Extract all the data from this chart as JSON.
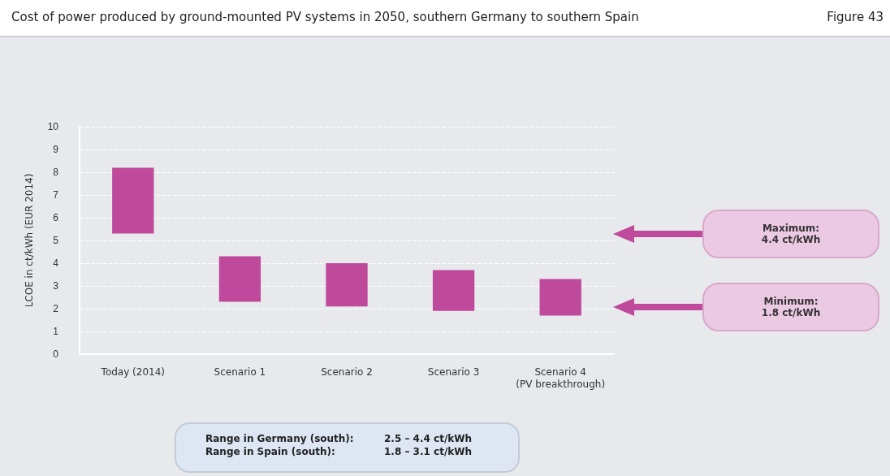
{
  "chart_data": {
    "type": "bar",
    "title": "Cost of power produced by ground-mounted PV systems in 2050, southern Germany to southern Spain",
    "ylabel": "LCOE in ct/kWh (EUR 2014)",
    "categories": [
      "Today (2014)",
      "Scenario 1",
      "Scenario 2",
      "Scenario 3",
      "Scenario 4\n(PV breakthrough)"
    ],
    "base": [
      5.3,
      2.3,
      2.1,
      1.9,
      1.7
    ],
    "values": [
      2.9,
      2.0,
      1.9,
      1.8,
      1.6
    ],
    "color": "#bf4a9b",
    "ylim": [
      0,
      10
    ],
    "yticks": [
      0,
      1,
      2,
      3,
      4,
      5,
      6,
      7,
      8,
      9,
      10
    ],
    "grid": "y",
    "annotations": [
      "Figure 43",
      "Maximum:\n4.4 ct/kWh",
      "Minimum:\n1.8 ct/kWh",
      "Range in Germany (south):\t2.5 – 4.4 ct/kWh",
      "Range in Spain (south):\t1.8 – 3.1 ct/kWh"
    ]
  }
}
